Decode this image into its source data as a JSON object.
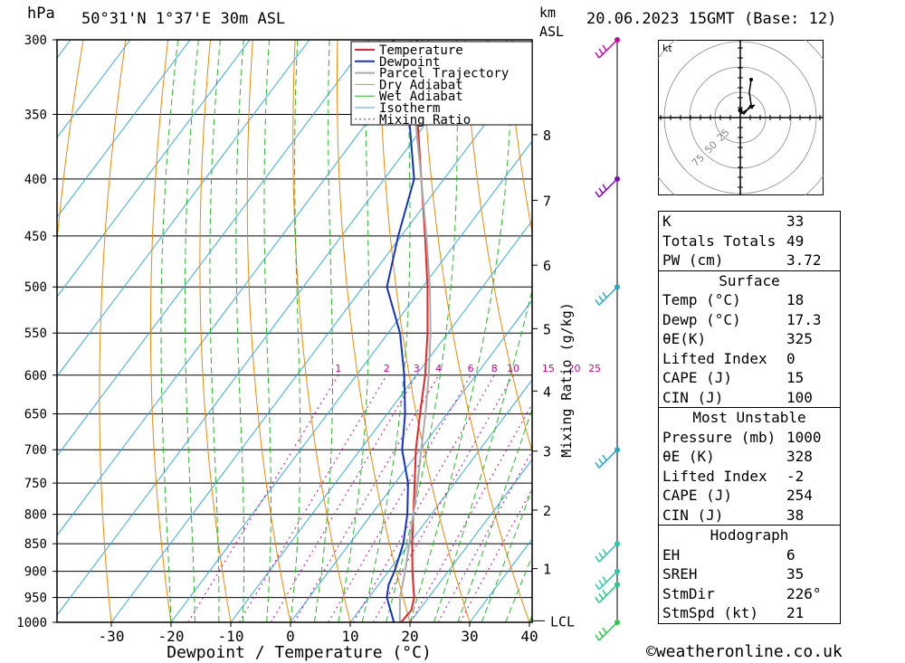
{
  "header": {
    "location": "50°31'N 1°37'E 30m ASL",
    "datetime": "20.06.2023 15GMT (Base: 12)",
    "pressure_unit": "hPa",
    "height_unit_top": "km",
    "height_unit_bottom": "ASL"
  },
  "credit": "©weatheronline.co.uk",
  "colors": {
    "temperature": "#ee2222",
    "dewpoint": "#1133cc",
    "parcel": "#aaaaaa",
    "dry_adiabat": "#ee8800",
    "wet_adiabat": "#22bb22",
    "isotherm": "#33aaee",
    "mixing_ratio": "#cc0099"
  },
  "legend": [
    "Temperature",
    "Dewpoint",
    "Parcel Trajectory",
    "Dry Adiabat",
    "Wet Adiabat",
    "Isotherm",
    "Mixing Ratio"
  ],
  "hodograph": {
    "unit_label": "kt",
    "ring_labels": [
      "25",
      "50",
      "75"
    ]
  },
  "table": {
    "indices": [
      {
        "label": "K",
        "value": "33"
      },
      {
        "label": "Totals Totals",
        "value": "49"
      },
      {
        "label": "PW (cm)",
        "value": "3.72"
      }
    ],
    "surface": {
      "title": "Surface",
      "rows": [
        {
          "label": "Temp (°C)",
          "value": "18"
        },
        {
          "label": "Dewp (°C)",
          "value": "17.3"
        },
        {
          "label": "θE(K)",
          "value": "325"
        },
        {
          "label": "Lifted Index",
          "value": "0"
        },
        {
          "label": "CAPE (J)",
          "value": "15"
        },
        {
          "label": "CIN (J)",
          "value": "100"
        }
      ]
    },
    "most_unstable": {
      "title": "Most Unstable",
      "rows": [
        {
          "label": "Pressure (mb)",
          "value": "1000"
        },
        {
          "label": "θE (K)",
          "value": "328"
        },
        {
          "label": "Lifted Index",
          "value": "-2"
        },
        {
          "label": "CAPE (J)",
          "value": "254"
        },
        {
          "label": "CIN (J)",
          "value": "38"
        }
      ]
    },
    "hodograph": {
      "title": "Hodograph",
      "rows": [
        {
          "label": "EH",
          "value": "6"
        },
        {
          "label": "SREH",
          "value": "35"
        },
        {
          "label": "StmDir",
          "value": "226°"
        },
        {
          "label": "StmSpd (kt)",
          "value": "21"
        }
      ]
    }
  },
  "chart_data": {
    "type": "line",
    "title": "",
    "xlabel": "Dewpoint / Temperature (°C)",
    "ylabel": "hPa",
    "right_label": "Mixing Ratio (g/kg)",
    "xlim": [
      -40,
      40
    ],
    "x_ticks": [
      -30,
      -20,
      -10,
      0,
      10,
      20,
      30,
      40
    ],
    "pressure_levels": [
      300,
      350,
      400,
      450,
      500,
      550,
      600,
      650,
      700,
      750,
      800,
      850,
      900,
      950,
      1000
    ],
    "height_ticks_km": [
      {
        "label": "8",
        "p": 365
      },
      {
        "label": "7",
        "p": 418
      },
      {
        "label": "6",
        "p": 478
      },
      {
        "label": "5",
        "p": 545
      },
      {
        "label": "4",
        "p": 620
      },
      {
        "label": "3",
        "p": 702
      },
      {
        "label": "2",
        "p": 793
      },
      {
        "label": "1",
        "p": 895
      },
      {
        "label": "LCL",
        "p": 997
      }
    ],
    "mixing_ratio_labels": [
      "1",
      "2",
      "3",
      "4",
      "6",
      "8",
      "10",
      "15",
      "20",
      "25"
    ],
    "mixing_ratio_values": [
      1,
      2,
      3,
      4,
      6,
      8,
      10,
      15,
      20,
      25
    ],
    "series": [
      {
        "name": "Temperature",
        "p": [
          1000,
          975,
          950,
          925,
          900,
          850,
          800,
          750,
          700,
          650,
          600,
          550,
          500,
          450,
          400,
          350,
          300
        ],
        "t": [
          18.5,
          18.7,
          17.6,
          15.8,
          14.0,
          10.5,
          7.0,
          3.3,
          -0.7,
          -4.5,
          -8.5,
          -13.4,
          -19.2,
          -26.0,
          -33.8,
          -42.6,
          -52.0
        ]
      },
      {
        "name": "Dewpoint",
        "p": [
          1000,
          975,
          950,
          925,
          900,
          850,
          800,
          750,
          700,
          650,
          600,
          550,
          500,
          450,
          400,
          350,
          300
        ],
        "t": [
          17.3,
          15.2,
          13.0,
          11.7,
          11.0,
          9.0,
          6.0,
          2.2,
          -3.0,
          -7.0,
          -12.0,
          -18.0,
          -26.0,
          -30.5,
          -35.0,
          -44.0,
          -56.0
        ]
      },
      {
        "name": "Parcel Trajectory",
        "p": [
          1000,
          950,
          900,
          850,
          800,
          750,
          700,
          650,
          600,
          550,
          500,
          450,
          400,
          350,
          300
        ],
        "t": [
          18.3,
          15.2,
          12.8,
          10.0,
          7.0,
          3.8,
          0.2,
          -3.6,
          -7.9,
          -12.9,
          -18.8,
          -25.8,
          -33.8,
          -43.0,
          -53.0
        ]
      }
    ],
    "wind_barbs_p": [
      300,
      400,
      500,
      700,
      850,
      900,
      925,
      1000
    ]
  }
}
